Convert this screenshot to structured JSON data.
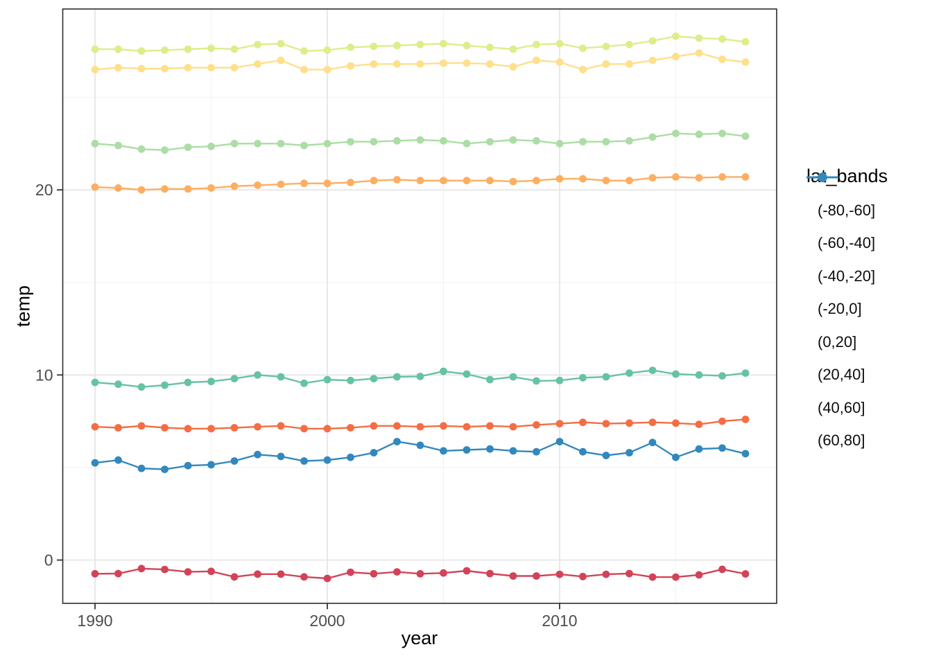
{
  "chart_data": {
    "type": "line",
    "title": "",
    "xlabel": "year",
    "ylabel": "temp",
    "legend_title": "lat_bands",
    "legend_position": "right",
    "grid": "on",
    "x_ticks": [
      1990,
      2000,
      2010
    ],
    "x_minor_ticks": [
      1995,
      2005,
      2015
    ],
    "y_ticks": [
      0,
      10,
      20
    ],
    "y_minor_ticks": [
      5,
      15,
      25
    ],
    "xlim": [
      1988.6,
      2019.3
    ],
    "ylim": [
      -2.4,
      29.8
    ],
    "x": [
      1990,
      1991,
      1992,
      1993,
      1994,
      1995,
      1996,
      1997,
      1998,
      1999,
      2000,
      2001,
      2002,
      2003,
      2004,
      2005,
      2006,
      2007,
      2008,
      2009,
      2010,
      2011,
      2012,
      2013,
      2014,
      2015,
      2016,
      2017,
      2018
    ],
    "series": [
      {
        "name": "(-80,-60]",
        "color": "#d24358",
        "values": [
          -0.74,
          -0.73,
          -0.46,
          -0.51,
          -0.64,
          -0.61,
          -0.91,
          -0.76,
          -0.76,
          -0.91,
          -0.99,
          -0.66,
          -0.74,
          -0.64,
          -0.74,
          -0.7,
          -0.58,
          -0.73,
          -0.86,
          -0.86,
          -0.77,
          -0.89,
          -0.77,
          -0.73,
          -0.92,
          -0.92,
          -0.8,
          -0.5,
          -0.75
        ]
      },
      {
        "name": "(-60,-40]",
        "color": "#f46d43",
        "values": [
          7.2,
          7.15,
          7.25,
          7.15,
          7.1,
          7.1,
          7.15,
          7.2,
          7.25,
          7.1,
          7.1,
          7.15,
          7.25,
          7.25,
          7.2,
          7.25,
          7.2,
          7.25,
          7.2,
          7.3,
          7.37,
          7.44,
          7.37,
          7.4,
          7.44,
          7.4,
          7.33,
          7.5,
          7.6
        ]
      },
      {
        "name": "(-40,-20]",
        "color": "#fdae61",
        "values": [
          20.15,
          20.1,
          20.0,
          20.05,
          20.05,
          20.1,
          20.2,
          20.25,
          20.3,
          20.35,
          20.35,
          20.4,
          20.5,
          20.55,
          20.5,
          20.5,
          20.5,
          20.5,
          20.45,
          20.5,
          20.6,
          20.6,
          20.5,
          20.5,
          20.65,
          20.7,
          20.65,
          20.7,
          20.7
        ]
      },
      {
        "name": "(-20,0]",
        "color": "#fedf8b",
        "values": [
          26.5,
          26.6,
          26.55,
          26.55,
          26.6,
          26.6,
          26.6,
          26.8,
          27.0,
          26.5,
          26.5,
          26.7,
          26.8,
          26.8,
          26.8,
          26.85,
          26.85,
          26.8,
          26.65,
          27.0,
          26.9,
          26.5,
          26.8,
          26.8,
          27.0,
          27.2,
          27.4,
          27.05,
          26.9
        ]
      },
      {
        "name": "(0,20]",
        "color": "#dcee8a",
        "values": [
          27.6,
          27.6,
          27.5,
          27.55,
          27.6,
          27.65,
          27.6,
          27.85,
          27.9,
          27.5,
          27.55,
          27.7,
          27.75,
          27.8,
          27.85,
          27.9,
          27.8,
          27.7,
          27.6,
          27.85,
          27.9,
          27.65,
          27.75,
          27.85,
          28.05,
          28.3,
          28.2,
          28.15,
          28.0
        ]
      },
      {
        "name": "(20,40]",
        "color": "#abdda4",
        "values": [
          22.5,
          22.4,
          22.2,
          22.15,
          22.3,
          22.35,
          22.5,
          22.5,
          22.5,
          22.4,
          22.5,
          22.6,
          22.6,
          22.65,
          22.7,
          22.65,
          22.5,
          22.6,
          22.7,
          22.65,
          22.5,
          22.6,
          22.6,
          22.65,
          22.85,
          23.05,
          23.0,
          23.05,
          22.9
        ]
      },
      {
        "name": "(40,60]",
        "color": "#66c2a5",
        "values": [
          9.6,
          9.5,
          9.35,
          9.45,
          9.6,
          9.65,
          9.8,
          10.0,
          9.9,
          9.55,
          9.75,
          9.7,
          9.8,
          9.9,
          9.92,
          10.2,
          10.05,
          9.75,
          9.9,
          9.68,
          9.7,
          9.85,
          9.9,
          10.1,
          10.25,
          10.05,
          10.0,
          9.95,
          10.1
        ]
      },
      {
        "name": "(60,80]",
        "color": "#3288bd",
        "values": [
          5.25,
          5.4,
          4.95,
          4.9,
          5.1,
          5.15,
          5.35,
          5.7,
          5.6,
          5.35,
          5.4,
          5.55,
          5.8,
          6.4,
          6.2,
          5.9,
          5.95,
          6.0,
          5.9,
          5.85,
          6.4,
          5.85,
          5.65,
          5.8,
          6.35,
          5.55,
          6.0,
          6.05,
          5.75
        ]
      }
    ]
  }
}
